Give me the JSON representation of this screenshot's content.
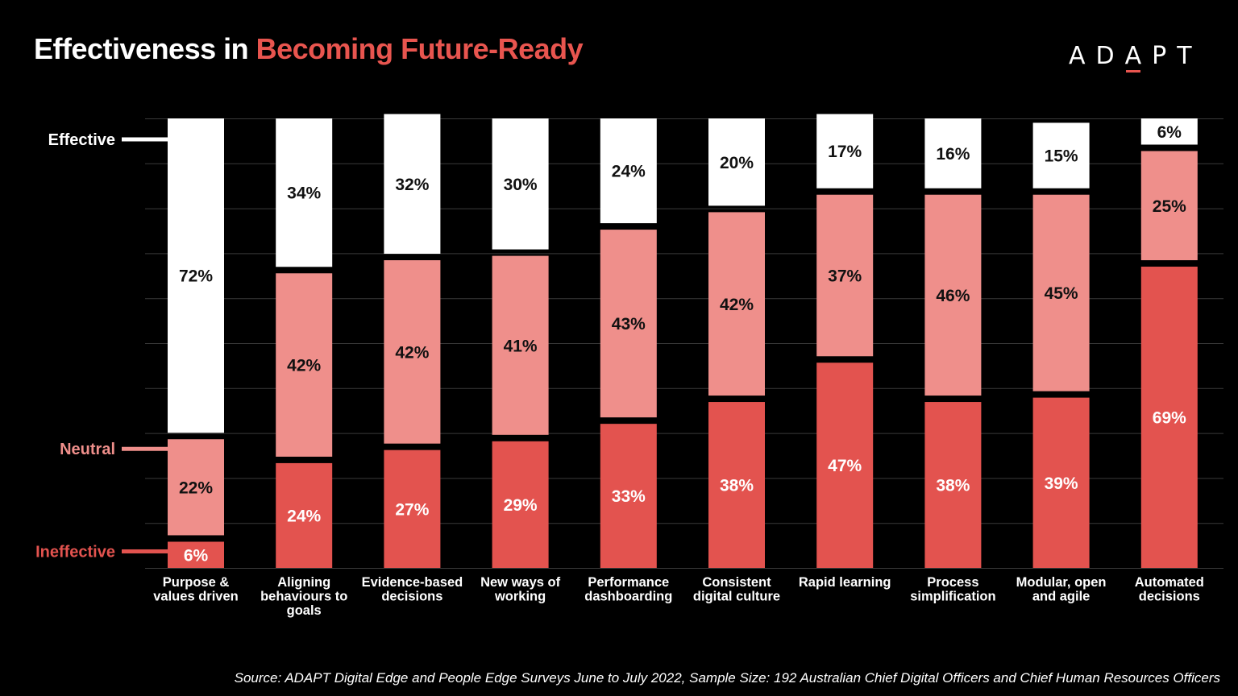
{
  "title": {
    "part1": "Effectiveness in ",
    "part2": "Becoming Future-Ready"
  },
  "logo": {
    "text_before": "AD",
    "text_a": "A",
    "text_after": "PT"
  },
  "source": "Source: ADAPT Digital Edge and People Edge Surveys June to July 2022, Sample Size: 192 Australian Chief Digital Officers and Chief Human Resources Officers",
  "colors": {
    "background": "#000000",
    "effective": "#ffffff",
    "neutral": "#ef8f8b",
    "ineffective": "#e3534f",
    "title_accent": "#e8554f"
  },
  "chart_data": {
    "type": "bar",
    "stacked": true,
    "orientation": "vertical",
    "categories": [
      [
        "Purpose &",
        "values driven"
      ],
      [
        "Aligning",
        "behaviours to",
        "goals"
      ],
      [
        "Evidence-based",
        "decisions"
      ],
      [
        "New ways of",
        "working"
      ],
      [
        "Performance",
        "dashboarding"
      ],
      [
        "Consistent",
        "digital culture"
      ],
      [
        "Rapid learning"
      ],
      [
        "Process",
        "simplification"
      ],
      [
        "Modular, open",
        "and agile"
      ],
      [
        "Automated",
        "decisions"
      ]
    ],
    "series": [
      {
        "name": "Ineffective",
        "values": [
          6,
          24,
          27,
          29,
          33,
          38,
          47,
          38,
          39,
          69
        ],
        "color": "#e3534f",
        "label_color": "#ffffff"
      },
      {
        "name": "Neutral",
        "values": [
          22,
          42,
          42,
          41,
          43,
          42,
          37,
          46,
          45,
          25
        ],
        "color": "#ef8f8b",
        "label_color": "#111111"
      },
      {
        "name": "Effective",
        "values": [
          72,
          34,
          32,
          30,
          24,
          20,
          17,
          16,
          15,
          6
        ],
        "color": "#ffffff",
        "label_color": "#111111"
      }
    ],
    "value_suffix": "%",
    "ylim": [
      0,
      100
    ],
    "y_axis_ticks_visible": false,
    "grid": true,
    "legend_placement": "left"
  }
}
